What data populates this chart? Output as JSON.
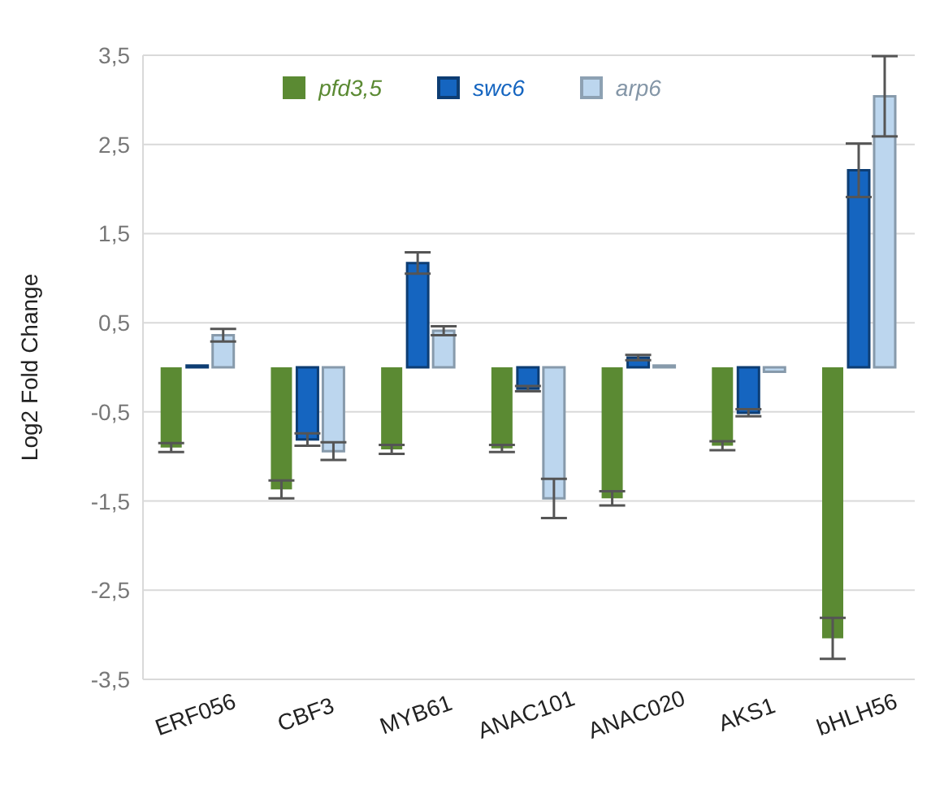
{
  "chart_data": {
    "type": "bar",
    "ylabel": "Log2 Fold Change",
    "categories": [
      "ERF056",
      "CBF3",
      "MYB61",
      "ANAC101",
      "ANAC020",
      "AKS1",
      "bHLH56"
    ],
    "series": [
      {
        "name": "pfd3,5",
        "color": "#5b8a33",
        "values": [
          -0.9,
          -1.37,
          -0.92,
          -0.91,
          -1.47,
          -0.88,
          -3.04
        ],
        "errors": [
          0.05,
          0.1,
          0.05,
          0.04,
          0.08,
          0.05,
          0.23
        ]
      },
      {
        "name": "swc6",
        "color": "#1565c0",
        "values": [
          0.02,
          -0.81,
          1.17,
          -0.24,
          0.11,
          -0.51,
          2.21
        ],
        "errors": [
          null,
          0.07,
          0.12,
          0.03,
          0.03,
          0.04,
          0.3
        ]
      },
      {
        "name": "arp6",
        "color": "#bcd6ee",
        "values": [
          0.36,
          -0.94,
          0.41,
          -1.47,
          0.02,
          -0.05,
          3.04
        ],
        "errors": [
          0.07,
          0.1,
          0.05,
          0.22,
          null,
          null,
          0.45
        ]
      }
    ],
    "ylim": [
      -3.5,
      3.5
    ],
    "yticks": [
      {
        "value": -3.5,
        "label": "-3,5"
      },
      {
        "value": -2.5,
        "label": "-2,5"
      },
      {
        "value": -1.5,
        "label": "-1,5"
      },
      {
        "value": -0.5,
        "label": "-0,5"
      },
      {
        "value": 0.5,
        "label": "0,5"
      },
      {
        "value": 1.5,
        "label": "1,5"
      },
      {
        "value": 2.5,
        "label": "2,5"
      },
      {
        "value": 3.5,
        "label": "3,5"
      }
    ],
    "grid": "y",
    "legend": "top"
  }
}
